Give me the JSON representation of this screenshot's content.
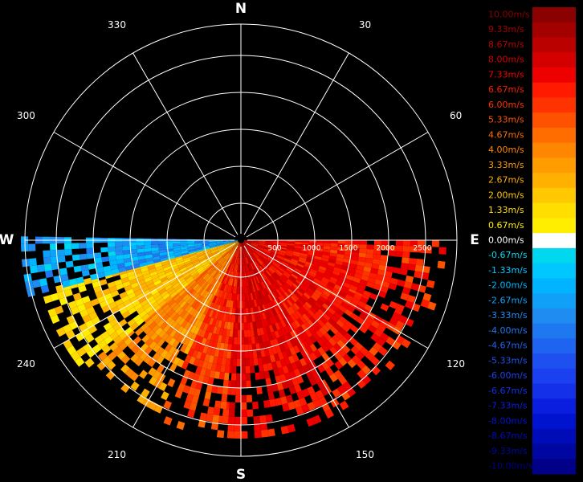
{
  "chart_data": {
    "type": "heatmap",
    "subtype": "polar radial velocity scan (PPI)",
    "compass": {
      "north": "N",
      "south": "S",
      "east": "E",
      "west": "W"
    },
    "angle_labels": [
      "30",
      "60",
      "120",
      "150",
      "210",
      "240",
      "300",
      "330"
    ],
    "range_labels": [
      "500",
      "1000",
      "1500",
      "2000",
      "2500"
    ],
    "range_max": 2600,
    "colorbar": {
      "labels": [
        "10.00m/s",
        "9.33m/s",
        "8.67m/s",
        "8.00m/s",
        "7.33m/s",
        "6.67m/s",
        "6.00m/s",
        "5.33m/s",
        "4.67m/s",
        "4.00m/s",
        "3.33m/s",
        "2.67m/s",
        "2.00m/s",
        "1.33m/s",
        "0.67m/s",
        "0.00m/s",
        "-0.67m/s",
        "-1.33m/s",
        "-2.00m/s",
        "-2.67m/s",
        "-3.33m/s",
        "-4.00m/s",
        "-4.67m/s",
        "-5.33m/s",
        "-6.00m/s",
        "-6.67m/s",
        "-7.33m/s",
        "-8.00m/s",
        "-8.67m/s",
        "-9.33m/s",
        "-10.00m/s"
      ],
      "colors": [
        "#8b0000",
        "#a30000",
        "#bb0000",
        "#d40000",
        "#ee0000",
        "#ff1a00",
        "#ff3300",
        "#ff5200",
        "#ff6d00",
        "#ff8600",
        "#ff9d00",
        "#ffb000",
        "#ffc800",
        "#ffde00",
        "#ffee00",
        "#ffffff",
        "#00d8f0",
        "#00c8ff",
        "#00b4ff",
        "#10a0f8",
        "#1e8cf0",
        "#1e78f0",
        "#1e64f0",
        "#1e50f0",
        "#1a40f0",
        "#1430e8",
        "#0a1ee0",
        "#0014d0",
        "#000cb8",
        "#0006a0",
        "#000088"
      ],
      "min": -10,
      "max": 10
    },
    "scan": {
      "sector_deg": [
        90,
        270
      ],
      "sectors": [
        {
          "az_from": 90,
          "az_to": 115,
          "velocity": 7.3,
          "max_range": 2700
        },
        {
          "az_from": 115,
          "az_to": 150,
          "velocity": 7.5,
          "max_range": 2600
        },
        {
          "az_from": 150,
          "az_to": 185,
          "velocity": 8.0,
          "max_range": 2650
        },
        {
          "az_from": 185,
          "az_to": 205,
          "velocity": 6.6,
          "max_range": 2600
        },
        {
          "az_from": 205,
          "az_to": 230,
          "velocity": 4.5,
          "max_range": 2550
        },
        {
          "az_from": 230,
          "az_to": 255,
          "velocity": 2.6,
          "max_range": 2700
        },
        {
          "az_from": 255,
          "az_to": 270,
          "velocity": -2.6,
          "max_range": 2900
        }
      ]
    }
  }
}
